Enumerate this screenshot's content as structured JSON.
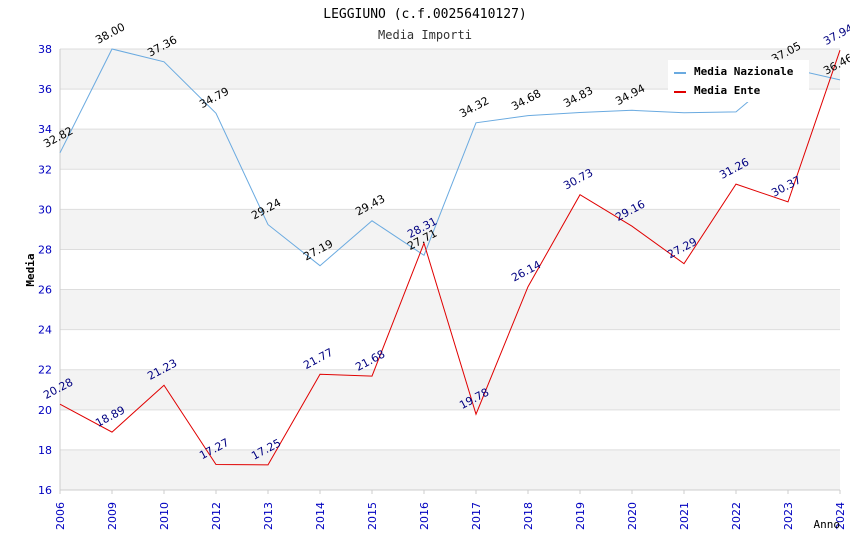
{
  "chart_data": {
    "type": "line",
    "title": "LEGGIUNO (c.f.00256410127)",
    "subtitle": "Media Importi",
    "xlabel": "Anno",
    "ylabel": "Media",
    "ylim": [
      16,
      38
    ],
    "yticks": [
      "16",
      "18",
      "20",
      "22",
      "24",
      "26",
      "28",
      "30",
      "32",
      "34",
      "36",
      "38"
    ],
    "categories": [
      "2006",
      "2009",
      "2010",
      "2012",
      "2013",
      "2014",
      "2015",
      "2016",
      "2017",
      "2018",
      "2019",
      "2020",
      "2021",
      "2022",
      "2023",
      "2024"
    ],
    "series": [
      {
        "name": "Media Nazionale",
        "color": "#6aaae0",
        "label_color": "#000000",
        "values": [
          32.82,
          38.0,
          37.36,
          34.79,
          29.24,
          27.19,
          29.43,
          27.71,
          34.32,
          34.68,
          34.83,
          34.94,
          34.82,
          34.86,
          37.05,
          36.46
        ],
        "labels": [
          "32.82",
          "38.00",
          "37.36",
          "34.79",
          "29.24",
          "27.19",
          "29.43",
          "27.71",
          "34.32",
          "34.68",
          "34.83",
          "34.94",
          "",
          "",
          "37.05",
          "36.46"
        ]
      },
      {
        "name": "Media Ente",
        "color": "#e00000",
        "label_color": "#000080",
        "values": [
          20.28,
          18.89,
          21.23,
          17.27,
          17.25,
          21.77,
          21.68,
          28.31,
          19.78,
          26.14,
          30.73,
          29.16,
          27.29,
          31.26,
          30.37,
          37.94
        ],
        "labels": [
          "20.28",
          "18.89",
          "21.23",
          "17.27",
          "17.25",
          "21.77",
          "21.68",
          "28.31",
          "19.78",
          "26.14",
          "30.73",
          "29.16",
          "27.29",
          "31.26",
          "30.37",
          "37.94"
        ]
      }
    ],
    "legend": "top-right",
    "grid": true
  }
}
